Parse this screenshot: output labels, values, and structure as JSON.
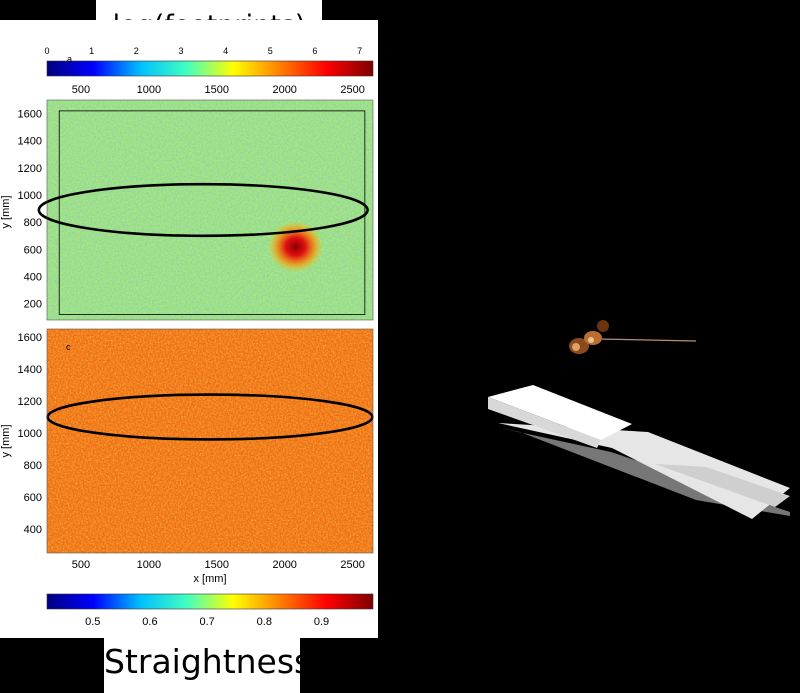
{
  "titles": {
    "top": "log(footprints)",
    "bottom": "Straightness"
  },
  "chart_data": [
    {
      "type": "heatmap",
      "panel_letter": "a",
      "xlim": [
        250,
        2650
      ],
      "ylim": [
        80,
        1700
      ],
      "yticks": [
        200,
        400,
        600,
        800,
        1000,
        1200,
        1400,
        1600
      ],
      "ylabel": "y [mm]",
      "colorbar": {
        "top_ticks": [
          0,
          1,
          2,
          3,
          4,
          5,
          6,
          7
        ],
        "top_range": [
          0,
          7.3
        ],
        "bottom_ticks": [
          500,
          1000,
          1500,
          2000,
          2500
        ],
        "bottom_range": [
          250,
          2650
        ]
      },
      "arena_rectangle": {
        "x": [
          340,
          2590
        ],
        "y": [
          120,
          1620
        ]
      },
      "ellipse": {
        "cx": 1400,
        "cy": 890,
        "rx": 1210,
        "ry": 190
      },
      "hotspot": {
        "x": 2080,
        "y": 620
      }
    },
    {
      "type": "heatmap",
      "panel_letter": "c",
      "xlim": [
        250,
        2650
      ],
      "ylim": [
        250,
        1650
      ],
      "xticks": [
        500,
        1000,
        1500,
        2000,
        2500
      ],
      "yticks": [
        400,
        600,
        800,
        1000,
        1200,
        1400,
        1600
      ],
      "xlabel": "x [mm]",
      "ylabel": "y [mm]",
      "colorbar": {
        "ticks": [
          0.5,
          0.6,
          0.7,
          0.8,
          0.9
        ],
        "range": [
          0.42,
          0.99
        ]
      },
      "ellipse": {
        "cx": 1450,
        "cy": 1100,
        "rx": 1195,
        "ry": 140
      }
    }
  ],
  "colors": {
    "jet": [
      "#00007f",
      "#0000ff",
      "#00bfff",
      "#40ffbf",
      "#ffff00",
      "#ff8000",
      "#ff0000",
      "#7f0000"
    ]
  },
  "icons": {
    "robot": "ant-robot-image",
    "platform": "white-platform-image"
  }
}
